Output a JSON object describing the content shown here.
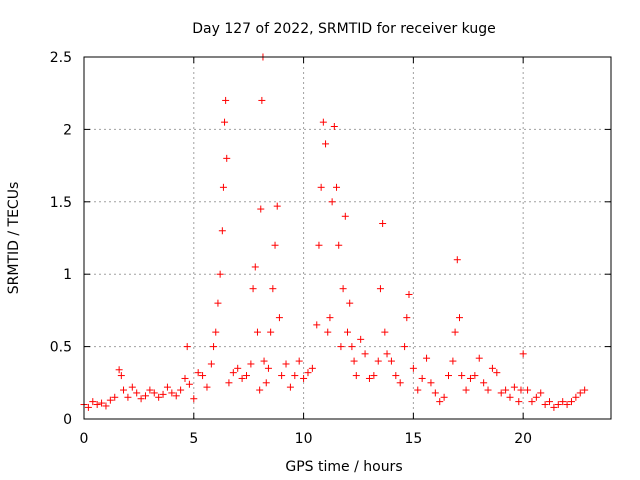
{
  "chart_data": {
    "type": "scatter",
    "title": "Day 127 of 2022, SRMTID for receiver kuge",
    "xlabel": "GPS time / hours",
    "ylabel": "SRMTID / TECUs",
    "xlim": [
      0,
      24
    ],
    "ylim": [
      0,
      2.5
    ],
    "x_ticks": [
      0,
      5,
      10,
      15,
      20
    ],
    "x_tick_labels": [
      "0",
      "5",
      "10",
      "15",
      "20"
    ],
    "y_ticks": [
      0,
      0.5,
      1,
      1.5,
      2,
      2.5
    ],
    "y_tick_labels": [
      "0",
      "0.5",
      "1",
      "1.5",
      "2",
      "2.5"
    ],
    "grid": true,
    "marker": "+",
    "series_color": "#ff0000",
    "series": [
      {
        "name": "SRMTID",
        "x": [
          0.0,
          0.2,
          0.4,
          0.6,
          0.8,
          1.0,
          1.2,
          1.4,
          1.6,
          1.7,
          1.8,
          2.0,
          2.2,
          2.4,
          2.6,
          2.8,
          3.0,
          3.2,
          3.4,
          3.6,
          3.8,
          4.0,
          4.2,
          4.4,
          4.6,
          4.7,
          4.8,
          5.0,
          5.2,
          5.4,
          5.6,
          5.8,
          5.9,
          6.0,
          6.1,
          6.2,
          6.3,
          6.35,
          6.4,
          6.45,
          6.5,
          6.6,
          6.8,
          7.0,
          7.2,
          7.4,
          7.6,
          7.7,
          7.8,
          7.9,
          8.0,
          8.05,
          8.1,
          8.15,
          8.2,
          8.3,
          8.4,
          8.5,
          8.6,
          8.7,
          8.8,
          8.9,
          9.0,
          9.2,
          9.4,
          9.6,
          9.8,
          10.0,
          10.2,
          10.4,
          10.6,
          10.7,
          10.8,
          10.9,
          11.0,
          11.1,
          11.2,
          11.3,
          11.4,
          11.5,
          11.6,
          11.7,
          11.8,
          11.9,
          12.0,
          12.1,
          12.2,
          12.3,
          12.4,
          12.6,
          12.8,
          13.0,
          13.2,
          13.4,
          13.5,
          13.6,
          13.7,
          13.8,
          14.0,
          14.2,
          14.4,
          14.6,
          14.7,
          14.8,
          15.0,
          15.2,
          15.4,
          15.6,
          15.8,
          16.0,
          16.2,
          16.4,
          16.6,
          16.8,
          16.9,
          17.0,
          17.1,
          17.2,
          17.4,
          17.6,
          17.8,
          18.0,
          18.2,
          18.4,
          18.6,
          18.8,
          19.0,
          19.2,
          19.4,
          19.6,
          19.8,
          19.9,
          20.0,
          20.2,
          20.4,
          20.6,
          20.8,
          21.0,
          21.2,
          21.4,
          21.6,
          21.8,
          22.0,
          22.2,
          22.4,
          22.6,
          22.8
        ],
        "y": [
          0.1,
          0.08,
          0.12,
          0.1,
          0.11,
          0.09,
          0.13,
          0.15,
          0.34,
          0.3,
          0.2,
          0.15,
          0.22,
          0.18,
          0.14,
          0.16,
          0.2,
          0.18,
          0.15,
          0.17,
          0.22,
          0.18,
          0.16,
          0.2,
          0.28,
          0.5,
          0.24,
          0.14,
          0.32,
          0.3,
          0.22,
          0.38,
          0.5,
          0.6,
          0.8,
          1.0,
          1.3,
          1.6,
          2.05,
          2.2,
          1.8,
          0.25,
          0.32,
          0.35,
          0.28,
          0.3,
          0.38,
          0.9,
          1.05,
          0.6,
          0.2,
          1.45,
          2.2,
          2.5,
          0.4,
          0.25,
          0.35,
          0.6,
          0.9,
          1.2,
          1.47,
          0.7,
          0.3,
          0.38,
          0.22,
          0.3,
          0.4,
          0.28,
          0.32,
          0.35,
          0.65,
          1.2,
          1.6,
          2.05,
          1.9,
          0.6,
          0.7,
          1.5,
          2.02,
          1.6,
          1.2,
          0.5,
          0.9,
          1.4,
          0.6,
          0.8,
          0.5,
          0.4,
          0.3,
          0.55,
          0.45,
          0.28,
          0.3,
          0.4,
          0.9,
          1.35,
          0.6,
          0.45,
          0.4,
          0.3,
          0.25,
          0.5,
          0.7,
          0.86,
          0.35,
          0.2,
          0.28,
          0.42,
          0.25,
          0.18,
          0.12,
          0.15,
          0.3,
          0.4,
          0.6,
          1.1,
          0.7,
          0.3,
          0.2,
          0.28,
          0.3,
          0.42,
          0.25,
          0.2,
          0.35,
          0.32,
          0.18,
          0.2,
          0.15,
          0.22,
          0.12,
          0.2,
          0.45,
          0.2,
          0.12,
          0.15,
          0.18,
          0.1,
          0.12,
          0.08,
          0.1,
          0.12,
          0.1,
          0.12,
          0.15,
          0.18,
          0.2
        ]
      }
    ]
  }
}
